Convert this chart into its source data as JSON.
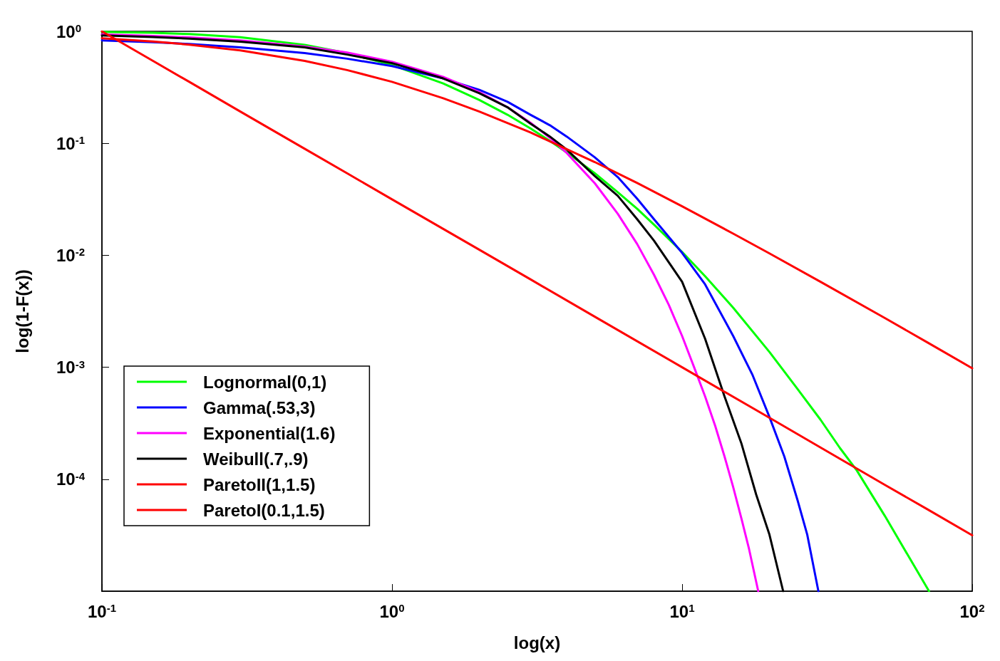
{
  "chart_data": {
    "type": "line",
    "xlabel": "log(x)",
    "ylabel": "log(1-F(x))",
    "log": "xy",
    "grid": false,
    "legend": "bottom left",
    "marker": "none",
    "line_style": "solid",
    "xlim": [
      0.1,
      100
    ],
    "ylim": [
      1e-05,
      1
    ],
    "xticks": [
      {
        "value": 0.1,
        "label": "10$^{-1}$"
      },
      {
        "value": 1,
        "label": "10$^{0}$"
      },
      {
        "value": 10,
        "label": "10$^{1}$"
      },
      {
        "value": 100,
        "label": "10$^{2}$"
      }
    ],
    "yticks": [
      {
        "value": 0.0001,
        "label": "10$^{-4}$"
      },
      {
        "value": 0.001,
        "label": "10$^{-3}$"
      },
      {
        "value": 0.01,
        "label": "10$^{-2}$"
      },
      {
        "value": 0.1,
        "label": "10$^{-1}$"
      },
      {
        "value": 1,
        "label": "10$^{0}$"
      }
    ],
    "series": [
      {
        "name": "Lognormal(0,1)",
        "color": "#00ff00",
        "x": [
          0.1,
          0.15,
          0.2,
          0.3,
          0.5,
          0.7,
          1,
          1.5,
          2,
          2.5,
          3,
          3.5,
          4,
          5,
          6,
          7,
          8,
          10,
          12,
          15,
          20,
          25,
          30,
          35,
          40,
          50,
          60,
          71
        ],
        "values": [
          0.989,
          0.971,
          0.946,
          0.886,
          0.756,
          0.639,
          0.5,
          0.343,
          0.244,
          0.18,
          0.136,
          0.105,
          0.083,
          0.054,
          0.0366,
          0.026,
          0.0188,
          0.0107,
          0.0065,
          0.0034,
          0.00137,
          0.00064,
          0.00034,
          0.00019,
          0.00012,
          4.7e-05,
          2.1e-05,
          1e-05
        ]
      },
      {
        "name": "Gamma(.53,3)",
        "color": "#0000ff",
        "x": [
          0.1,
          0.15,
          0.2,
          0.3,
          0.5,
          0.7,
          1,
          1.5,
          2,
          2.5,
          3,
          3.5,
          4,
          5,
          6,
          7,
          8,
          10,
          12,
          15,
          17.5,
          20,
          22.5,
          25,
          27,
          29.5
        ],
        "values": [
          0.83,
          0.8,
          0.77,
          0.72,
          0.64,
          0.57,
          0.49,
          0.38,
          0.3,
          0.235,
          0.18,
          0.145,
          0.115,
          0.075,
          0.05,
          0.032,
          0.021,
          0.0105,
          0.0055,
          0.0019,
          0.00085,
          0.00036,
          0.00016,
          6.5e-05,
          3.2e-05,
          1e-05
        ]
      },
      {
        "name": "Exponential(1.6)",
        "color": "#ff00ff",
        "x": [
          0.1,
          0.15,
          0.2,
          0.3,
          0.5,
          0.7,
          1,
          1.5,
          2,
          2.5,
          3,
          3.5,
          4,
          5,
          6,
          7,
          8,
          9,
          10,
          11,
          12,
          13,
          14,
          15,
          16,
          17,
          18.3
        ],
        "values": [
          0.939,
          0.91,
          0.882,
          0.829,
          0.732,
          0.646,
          0.535,
          0.392,
          0.287,
          0.21,
          0.153,
          0.112,
          0.082,
          0.044,
          0.0235,
          0.0126,
          0.0067,
          0.0036,
          0.0019,
          0.001,
          0.00055,
          0.0003,
          0.00016,
          8.5e-05,
          4.5e-05,
          2.4e-05,
          1e-05
        ]
      },
      {
        "name": "Weibull(.7,.9)",
        "color": "#000000",
        "x": [
          0.1,
          0.15,
          0.2,
          0.3,
          0.5,
          0.7,
          1,
          1.5,
          2,
          2.5,
          3,
          3.5,
          4,
          5,
          6,
          7,
          8,
          10,
          12,
          14,
          16,
          18,
          20,
          22.3
        ],
        "values": [
          0.92,
          0.89,
          0.86,
          0.81,
          0.72,
          0.62,
          0.52,
          0.38,
          0.28,
          0.21,
          0.15,
          0.115,
          0.088,
          0.051,
          0.034,
          0.021,
          0.0135,
          0.0058,
          0.0018,
          0.00055,
          0.00021,
          7.3e-05,
          3.2e-05,
          1e-05
        ]
      },
      {
        "name": "ParetoII(1,1.5)",
        "color": "#ff0000",
        "x": [
          0.1,
          0.15,
          0.2,
          0.3,
          0.5,
          0.7,
          1,
          1.5,
          2,
          3,
          5,
          7,
          10,
          15,
          20,
          30,
          50,
          70,
          100
        ],
        "values": [
          0.867,
          0.811,
          0.761,
          0.675,
          0.544,
          0.451,
          0.354,
          0.253,
          0.192,
          0.125,
          0.068,
          0.0442,
          0.0274,
          0.0156,
          0.0104,
          0.0058,
          0.00275,
          0.00167,
          0.00098
        ]
      },
      {
        "name": "ParetoI(0.1,1.5)",
        "color": "#ff0000",
        "x": [
          0.1,
          0.15,
          0.2,
          0.3,
          0.5,
          0.7,
          1,
          2,
          3,
          5,
          10,
          20,
          30,
          50,
          70,
          100
        ],
        "values": [
          1,
          0.544,
          0.354,
          0.192,
          0.0894,
          0.054,
          0.0316,
          0.0112,
          0.0061,
          0.00283,
          0.001,
          0.000354,
          0.000192,
          8.9e-05,
          5.4e-05,
          3.16e-05
        ]
      }
    ]
  }
}
